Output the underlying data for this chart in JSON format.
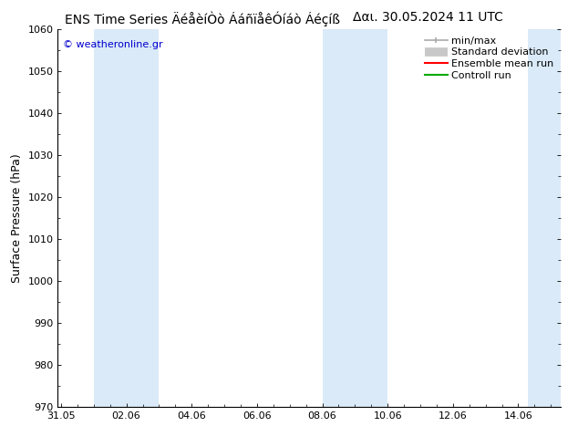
{
  "title": "ENS Time Series ÄéåèíÒò ÁáñïåêÓíáò Áéçíß",
  "date_label": "Δαι. 30.05.2024 11 UTC",
  "ylabel": "Surface Pressure (hPa)",
  "watermark": "© weatheronline.gr",
  "ylim": [
    970,
    1060
  ],
  "yticks": [
    970,
    980,
    990,
    1000,
    1010,
    1020,
    1030,
    1040,
    1050,
    1060
  ],
  "xtick_labels": [
    "31.05",
    "02.06",
    "04.06",
    "06.06",
    "08.06",
    "10.06",
    "12.06",
    "14.06"
  ],
  "xtick_positions": [
    0,
    2,
    4,
    6,
    8,
    10,
    12,
    14
  ],
  "x_min": -0.1,
  "x_max": 15.3,
  "shaded_bands": [
    {
      "x_start": 1.0,
      "x_end": 3.0
    },
    {
      "x_start": 8.0,
      "x_end": 10.0
    },
    {
      "x_start": 14.3,
      "x_end": 15.3
    }
  ],
  "band_color": "#daeaf8",
  "bg_color": "#ffffff",
  "legend_items": [
    {
      "label": "min/max",
      "color": "#aaaaaa",
      "lw": 1.2,
      "style": "solid",
      "type": "minmax"
    },
    {
      "label": "Standard deviation",
      "color": "#c8c8c8",
      "lw": 7,
      "style": "solid",
      "type": "band"
    },
    {
      "label": "Ensemble mean run",
      "color": "#ff0000",
      "lw": 1.5,
      "style": "solid",
      "type": "line"
    },
    {
      "label": "Controll run",
      "color": "#00aa00",
      "lw": 1.5,
      "style": "solid",
      "type": "line"
    }
  ],
  "title_fontsize": 10,
  "label_fontsize": 9,
  "tick_fontsize": 8,
  "watermark_color": "#0000cc",
  "title_color": "#000000",
  "axes_color": "#000000",
  "legend_fontsize": 8
}
